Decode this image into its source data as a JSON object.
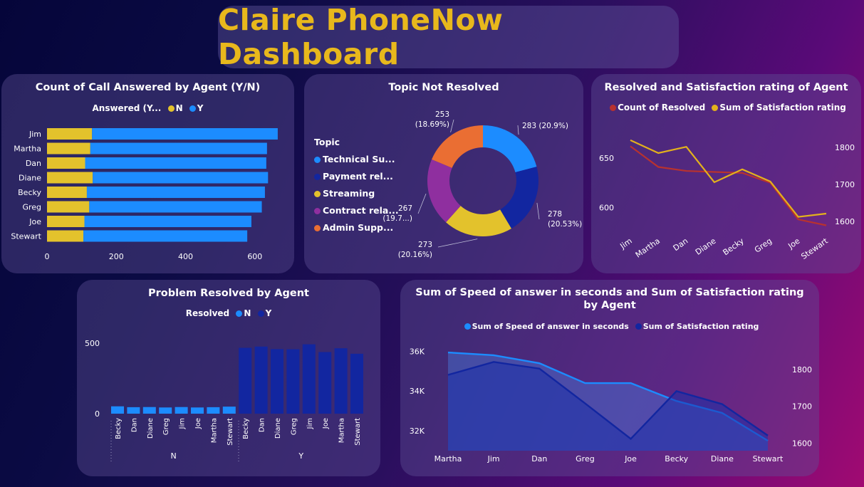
{
  "header": {
    "title": "Claire PhoneNow Dashboard"
  },
  "colors": {
    "yellow": "#e3c22c",
    "blue": "#1c8cff",
    "navy": "#1226a0",
    "purple": "#8f2f9f",
    "orange": "#ea6e33",
    "red": "#b8322f",
    "gold": "#e3b21c"
  },
  "panels": {
    "answered": {
      "title": "Count of Call Answered by Agent (Y/N)",
      "legend_title": "Answered (Y...",
      "legend_n": "N",
      "legend_y": "Y"
    },
    "topic": {
      "title": "Topic Not Resolved",
      "legend_title": "Topic",
      "legend_items": [
        "Technical Su...",
        "Payment rel...",
        "Streaming",
        "Contract rela...",
        "Admin Supp..."
      ]
    },
    "resolved_sat": {
      "title": "Resolved and Satisfaction rating of Agent",
      "legend_a": "Count of Resolved",
      "legend_b": "Sum of Satisfaction rating"
    },
    "problem": {
      "title": "Problem Resolved by Agent",
      "legend_title": "Resolved",
      "legend_n": "N",
      "legend_y": "Y"
    },
    "speed": {
      "title_line1": "Sum of Speed of answer in seconds and Sum of Satisfaction rating",
      "title_line2": "by Agent",
      "legend_a": "Sum of Speed of answer in seconds",
      "legend_b": "Sum of Satisfaction rating"
    }
  },
  "chart_data": [
    {
      "id": "answered",
      "type": "bar",
      "orientation": "horizontal",
      "stacked": true,
      "title": "Count of Call Answered by Agent (Y/N)",
      "categories": [
        "Jim",
        "Martha",
        "Dan",
        "Diane",
        "Becky",
        "Greg",
        "Joe",
        "Stewart"
      ],
      "series": [
        {
          "name": "N",
          "values": [
            130,
            125,
            110,
            132,
            115,
            122,
            108,
            105
          ]
        },
        {
          "name": "Y",
          "values": [
            536,
            510,
            523,
            506,
            514,
            498,
            482,
            473
          ]
        }
      ],
      "xticks": [
        0,
        200,
        400,
        600
      ],
      "xlim": [
        0,
        660
      ]
    },
    {
      "id": "topic",
      "type": "pie",
      "donut": true,
      "title": "Topic Not Resolved",
      "slices": [
        {
          "name": "Technical Su...",
          "value": 283,
          "label": "283 (20.9%)"
        },
        {
          "name": "Payment rel...",
          "value": 278,
          "label": "278 (20.53%)"
        },
        {
          "name": "Streaming",
          "value": 273,
          "label": "273 (20.16%)"
        },
        {
          "name": "Contract rela...",
          "value": 267,
          "label": "267 (19.7...)"
        },
        {
          "name": "Admin Supp...",
          "value": 253,
          "label": "253 (18.69%)"
        }
      ]
    },
    {
      "id": "resolved_sat",
      "type": "line",
      "title": "Resolved and Satisfaction rating of Agent",
      "categories": [
        "Jim",
        "Martha",
        "Dan",
        "Diane",
        "Becky",
        "Greg",
        "Joe",
        "Stewart"
      ],
      "series": [
        {
          "name": "Count of Resolved",
          "axis": "left",
          "values": [
            662,
            641,
            637,
            636,
            635,
            625,
            588,
            582
          ]
        },
        {
          "name": "Sum of Satisfaction rating",
          "axis": "right",
          "values": [
            1820,
            1785,
            1802,
            1706,
            1741,
            1708,
            1612,
            1621
          ]
        }
      ],
      "left_ticks": [
        600,
        650
      ],
      "left_range": [
        573,
        686
      ],
      "right_ticks": [
        1600,
        1700,
        1800
      ],
      "right_range": [
        1565,
        1868
      ]
    },
    {
      "id": "problem",
      "type": "bar",
      "title": "Problem Resolved by Agent",
      "groups": [
        {
          "name": "N",
          "categories": [
            "Becky",
            "Dan",
            "Diane",
            "Greg",
            "Jim",
            "Joe",
            "Martha",
            "Stewart"
          ],
          "values": [
            52,
            46,
            47,
            44,
            47,
            44,
            46,
            50
          ]
        },
        {
          "name": "Y",
          "categories": [
            "Becky",
            "Dan",
            "Diane",
            "Greg",
            "Jim",
            "Joe",
            "Martha",
            "Stewart"
          ],
          "values": [
            467,
            476,
            458,
            457,
            492,
            437,
            464,
            425
          ]
        }
      ],
      "yticks": [
        0,
        500
      ],
      "ylim": [
        0,
        540
      ]
    },
    {
      "id": "speed",
      "type": "area",
      "title": "Sum of Speed of answer in seconds and Sum of Satisfaction rating by Agent",
      "categories": [
        "Martha",
        "Jim",
        "Dan",
        "Greg",
        "Joe",
        "Becky",
        "Diane",
        "Stewart"
      ],
      "series": [
        {
          "name": "Sum of Speed of answer in seconds",
          "axis": "left",
          "values": [
            35940,
            35800,
            35400,
            34400,
            34400,
            33500,
            32900,
            31500
          ]
        },
        {
          "name": "Sum of Satisfaction rating",
          "axis": "right",
          "values": [
            1785,
            1820,
            1802,
            1708,
            1612,
            1741,
            1706,
            1621
          ]
        }
      ],
      "left_ticks": [
        "32K",
        "34K",
        "36K"
      ],
      "left_range": [
        31000,
        36300
      ],
      "right_ticks": [
        1600,
        1700,
        1800
      ],
      "right_range": [
        1580,
        1865
      ]
    }
  ]
}
